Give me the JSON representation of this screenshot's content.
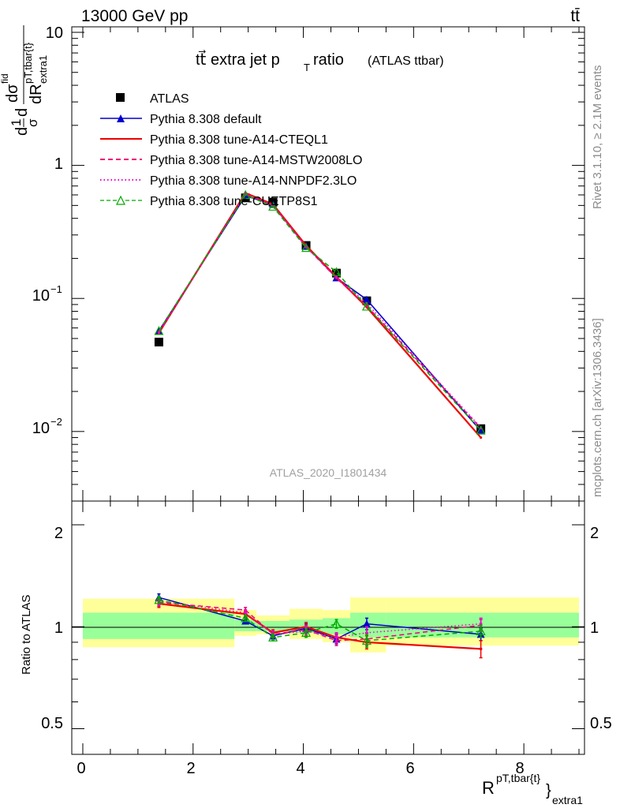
{
  "header": {
    "energy_label": "13000 GeV pp",
    "process_label": "tt̄"
  },
  "side_labels": {
    "rivet": "Rivet 3.1.10, ≥ 2.1M events",
    "mcplots": "mcplots.cern.ch [arXiv:1306.3436]"
  },
  "chart_data": [
    {
      "type": "line",
      "panel": "main",
      "title": "tt̄ → extra jet pT ratio",
      "title_parts": {
        "main": "tt⃗ extra jet p",
        "sub": "T",
        "ratio": "ratio",
        "tag": "(ATLAS ttbar)"
      },
      "analysis_label": "ATLAS_2020_I1801434",
      "yscale": "log",
      "ylim": [
        0.003,
        11
      ],
      "xlim": [
        -0.2,
        9.1
      ],
      "ylabel": "1/σ dσ/dR extra1 (pT,tbar{t})",
      "ylabel_parts": {
        "d1": "d",
        "one": "1",
        "sigma": "σ",
        "d2": "d",
        "dsig": "dσ",
        "fid": "fid",
        "den": "dR",
        "den_sup": "pT,tbar{t}",
        "den_sub": "extra1"
      },
      "yticks": [
        {
          "value": 10,
          "label": "10"
        },
        {
          "value": 1,
          "label": "1"
        },
        {
          "value": 0.1,
          "base": "10",
          "exp": "−1"
        },
        {
          "value": 0.01,
          "base": "10",
          "exp": "−2"
        }
      ],
      "x": [
        1.38,
        2.95,
        3.45,
        4.05,
        4.6,
        5.15,
        7.22
      ],
      "x_bin_edges": [
        0.0,
        2.75,
        3.15,
        3.75,
        4.35,
        4.85,
        5.5,
        9.0
      ],
      "legend": {
        "placement": "top-left"
      },
      "series": [
        {
          "name": "ATLAS",
          "color": "#000000",
          "style": "data",
          "marker": "square",
          "values": [
            0.047,
            0.57,
            0.53,
            0.25,
            0.155,
            0.096,
            0.0105
          ]
        },
        {
          "name": "Pythia 8.308 default",
          "color": "#0000cc",
          "style": "solid",
          "marker": "triangle",
          "values": [
            0.057,
            0.59,
            0.51,
            0.248,
            0.143,
            0.098,
            0.0101
          ]
        },
        {
          "name": "Pythia 8.308 tune-A14-CTEQL1",
          "color": "#ee0000",
          "style": "solid",
          "marker": "none",
          "values": [
            0.055,
            0.62,
            0.51,
            0.25,
            0.145,
            0.086,
            0.009
          ]
        },
        {
          "name": "Pythia 8.308 tune-A14-MSTW2008LO",
          "color": "#ee0077",
          "style": "dashed",
          "marker": "none",
          "values": [
            0.055,
            0.61,
            0.5,
            0.245,
            0.142,
            0.088,
            0.0106
          ]
        },
        {
          "name": "Pythia 8.308 tune-A14-NNPDF2.3LO",
          "color": "#ee00cc",
          "style": "dotted",
          "marker": "none",
          "values": [
            0.056,
            0.605,
            0.505,
            0.243,
            0.145,
            0.092,
            0.0107
          ]
        },
        {
          "name": "Pythia 8.308 tune-CUETP8S1",
          "color": "#00aa00",
          "style": "dashed",
          "marker": "open-triangle",
          "values": [
            0.057,
            0.6,
            0.49,
            0.24,
            0.158,
            0.087,
            0.0102
          ]
        }
      ]
    },
    {
      "type": "line",
      "panel": "ratio",
      "ylabel": "Ratio to ATLAS",
      "xlabel": "R extra1 (pT,tbar{t})",
      "xlabel_parts": {
        "base": "R",
        "sup": "pT,tbar{t}",
        "sub": "extra1",
        "brace": "}"
      },
      "yscale": "log",
      "ylim": [
        0.42,
        2.35
      ],
      "xlim": [
        -0.2,
        9.1
      ],
      "yticks": [
        0.5,
        1,
        2
      ],
      "ytick_labels": [
        "0.5",
        "1",
        "2"
      ],
      "xticks": [
        0,
        2,
        4,
        6,
        8
      ],
      "xtick_labels": [
        "0",
        "2",
        "4",
        "6",
        "8"
      ],
      "band_yellow": [
        [
          0.87,
          1.21
        ],
        [
          0.94,
          1.12
        ],
        [
          0.95,
          1.08
        ],
        [
          0.92,
          1.13
        ],
        [
          0.9,
          1.12
        ],
        [
          0.84,
          1.22
        ],
        [
          0.88,
          1.22
        ]
      ],
      "band_green": [
        [
          0.92,
          1.1
        ],
        [
          0.97,
          1.05
        ],
        [
          0.97,
          1.04
        ],
        [
          0.96,
          1.05
        ],
        [
          0.95,
          1.06
        ],
        [
          0.93,
          1.1
        ],
        [
          0.93,
          1.1
        ]
      ],
      "x": [
        1.38,
        2.95,
        3.45,
        4.05,
        4.6,
        5.15,
        7.22
      ],
      "series": [
        {
          "name": "Pythia 8.308 default",
          "color": "#0000cc",
          "style": "solid",
          "marker": "triangle",
          "values": [
            1.22,
            1.04,
            0.94,
            0.99,
            0.92,
            1.02,
            0.95
          ],
          "err": [
            0.03,
            0.02,
            0.02,
            0.03,
            0.03,
            0.04,
            0.04
          ]
        },
        {
          "name": "Pythia 8.308 tune-A14-CTEQL1",
          "color": "#ee0000",
          "style": "solid",
          "marker": "none",
          "values": [
            1.17,
            1.09,
            0.96,
            1.0,
            0.93,
            0.9,
            0.86
          ],
          "err": [
            0.03,
            0.02,
            0.02,
            0.03,
            0.03,
            0.04,
            0.05
          ]
        },
        {
          "name": "Pythia 8.308 tune-A14-MSTW2008LO",
          "color": "#ee0077",
          "style": "dashed",
          "marker": "none",
          "values": [
            1.18,
            1.12,
            0.95,
            0.98,
            0.91,
            0.92,
            1.01
          ],
          "err": [
            0.03,
            0.02,
            0.02,
            0.03,
            0.03,
            0.04,
            0.04
          ]
        },
        {
          "name": "Pythia 8.308 tune-A14-NNPDF2.3LO",
          "color": "#ee00cc",
          "style": "dotted",
          "marker": "none",
          "values": [
            1.19,
            1.1,
            0.95,
            0.97,
            0.93,
            0.96,
            1.02
          ],
          "err": [
            0.03,
            0.02,
            0.02,
            0.03,
            0.03,
            0.04,
            0.04
          ]
        },
        {
          "name": "Pythia 8.308 tune-CUETP8S1",
          "color": "#00aa00",
          "style": "dashed",
          "marker": "open-triangle",
          "values": [
            1.2,
            1.06,
            0.93,
            0.96,
            1.02,
            0.91,
            0.97
          ],
          "err": [
            0.03,
            0.02,
            0.02,
            0.03,
            0.03,
            0.04,
            0.04
          ]
        }
      ]
    }
  ]
}
